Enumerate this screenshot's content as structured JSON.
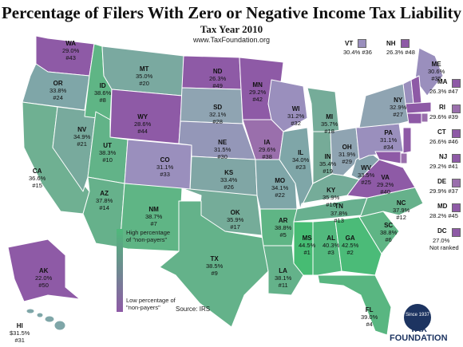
{
  "title": "Percentage of Filers With Zero or Negative Income Tax Liability",
  "subtitle": "Tax Year 2010",
  "url": "www.TaxFoundation.org",
  "colors": {
    "high": "#4fb97b",
    "mid": "#7fa6a8",
    "low": "#8e5aa6"
  },
  "legend": {
    "high": "High percentage of \"non-payers\"",
    "low": "Low percentage of \"non-payers\""
  },
  "source": "Source: IRS",
  "logo": {
    "line1": "TAX",
    "line2": "FOUNDATION",
    "since": "Since 1937"
  },
  "states": [
    {
      "id": "WA",
      "pct": "29.0%",
      "rank": "#43"
    },
    {
      "id": "OR",
      "pct": "33.8%",
      "rank": "#24"
    },
    {
      "id": "CA",
      "pct": "36.6%",
      "rank": "#15"
    },
    {
      "id": "NV",
      "pct": "34.9%",
      "rank": "#21"
    },
    {
      "id": "ID",
      "pct": "38.6%",
      "rank": "#8"
    },
    {
      "id": "MT",
      "pct": "35.0%",
      "rank": "#20"
    },
    {
      "id": "WY",
      "pct": "28.6%",
      "rank": "#44"
    },
    {
      "id": "UT",
      "pct": "38.3%",
      "rank": "#10"
    },
    {
      "id": "AZ",
      "pct": "37.8%",
      "rank": "#14"
    },
    {
      "id": "CO",
      "pct": "31.1%",
      "rank": "#33"
    },
    {
      "id": "NM",
      "pct": "38.7%",
      "rank": "#7"
    },
    {
      "id": "ND",
      "pct": "26.3%",
      "rank": "#49"
    },
    {
      "id": "SD",
      "pct": "32.1%",
      "rank": "#28"
    },
    {
      "id": "NE",
      "pct": "31.5%",
      "rank": "#30"
    },
    {
      "id": "KS",
      "pct": "33.4%",
      "rank": "#26"
    },
    {
      "id": "OK",
      "pct": "35.9%",
      "rank": "#17"
    },
    {
      "id": "TX",
      "pct": "38.5%",
      "rank": "#9"
    },
    {
      "id": "MN",
      "pct": "29.2%",
      "rank": "#42"
    },
    {
      "id": "IA",
      "pct": "29.6%",
      "rank": "#38"
    },
    {
      "id": "MO",
      "pct": "34.1%",
      "rank": "#22"
    },
    {
      "id": "AR",
      "pct": "38.8%",
      "rank": "#5"
    },
    {
      "id": "LA",
      "pct": "38.1%",
      "rank": "#11"
    },
    {
      "id": "WI",
      "pct": "31.2%",
      "rank": "#32"
    },
    {
      "id": "IL",
      "pct": "34.0%",
      "rank": "#23"
    },
    {
      "id": "MI",
      "pct": "35.7%",
      "rank": "#18"
    },
    {
      "id": "IN",
      "pct": "35.4%",
      "rank": "#19"
    },
    {
      "id": "OH",
      "pct": "31.9%",
      "rank": "#29"
    },
    {
      "id": "KY",
      "pct": "35.9%",
      "rank": "#16"
    },
    {
      "id": "TN",
      "pct": "37.8%",
      "rank": "#13"
    },
    {
      "id": "MS",
      "pct": "44.5%",
      "rank": "#1"
    },
    {
      "id": "AL",
      "pct": "40.3%",
      "rank": "#3"
    },
    {
      "id": "GA",
      "pct": "42.5%",
      "rank": "#2"
    },
    {
      "id": "FL",
      "pct": "39.0%",
      "rank": "#4"
    },
    {
      "id": "SC",
      "pct": "38.8%",
      "rank": "#6"
    },
    {
      "id": "NC",
      "pct": "37.9%",
      "rank": "#12"
    },
    {
      "id": "VA",
      "pct": "29.2%",
      "rank": "#40"
    },
    {
      "id": "WV",
      "pct": "33.5%",
      "rank": "#25"
    },
    {
      "id": "PA",
      "pct": "31.1%",
      "rank": "#34"
    },
    {
      "id": "NY",
      "pct": "32.9%",
      "rank": "#27"
    },
    {
      "id": "ME",
      "pct": "30.6%",
      "rank": "#35"
    },
    {
      "id": "AK",
      "pct": "22.0%",
      "rank": "#50"
    },
    {
      "id": "HI",
      "pct": "$31.5%",
      "rank": "#31"
    }
  ],
  "side_states": [
    {
      "id": "VT",
      "text": "30.4% #36"
    },
    {
      "id": "NH",
      "text": "26.3% #48"
    },
    {
      "id": "MA",
      "text": "26.3% #47"
    },
    {
      "id": "RI",
      "text": "29.6% #39"
    },
    {
      "id": "CT",
      "text": "26.6% #46"
    },
    {
      "id": "NJ",
      "text": "29.2% #41"
    },
    {
      "id": "DE",
      "text": "29.9% #37"
    },
    {
      "id": "MD",
      "text": "28.2% #45"
    },
    {
      "id": "DC",
      "pct": "27.0%",
      "note": "Not ranked"
    }
  ]
}
